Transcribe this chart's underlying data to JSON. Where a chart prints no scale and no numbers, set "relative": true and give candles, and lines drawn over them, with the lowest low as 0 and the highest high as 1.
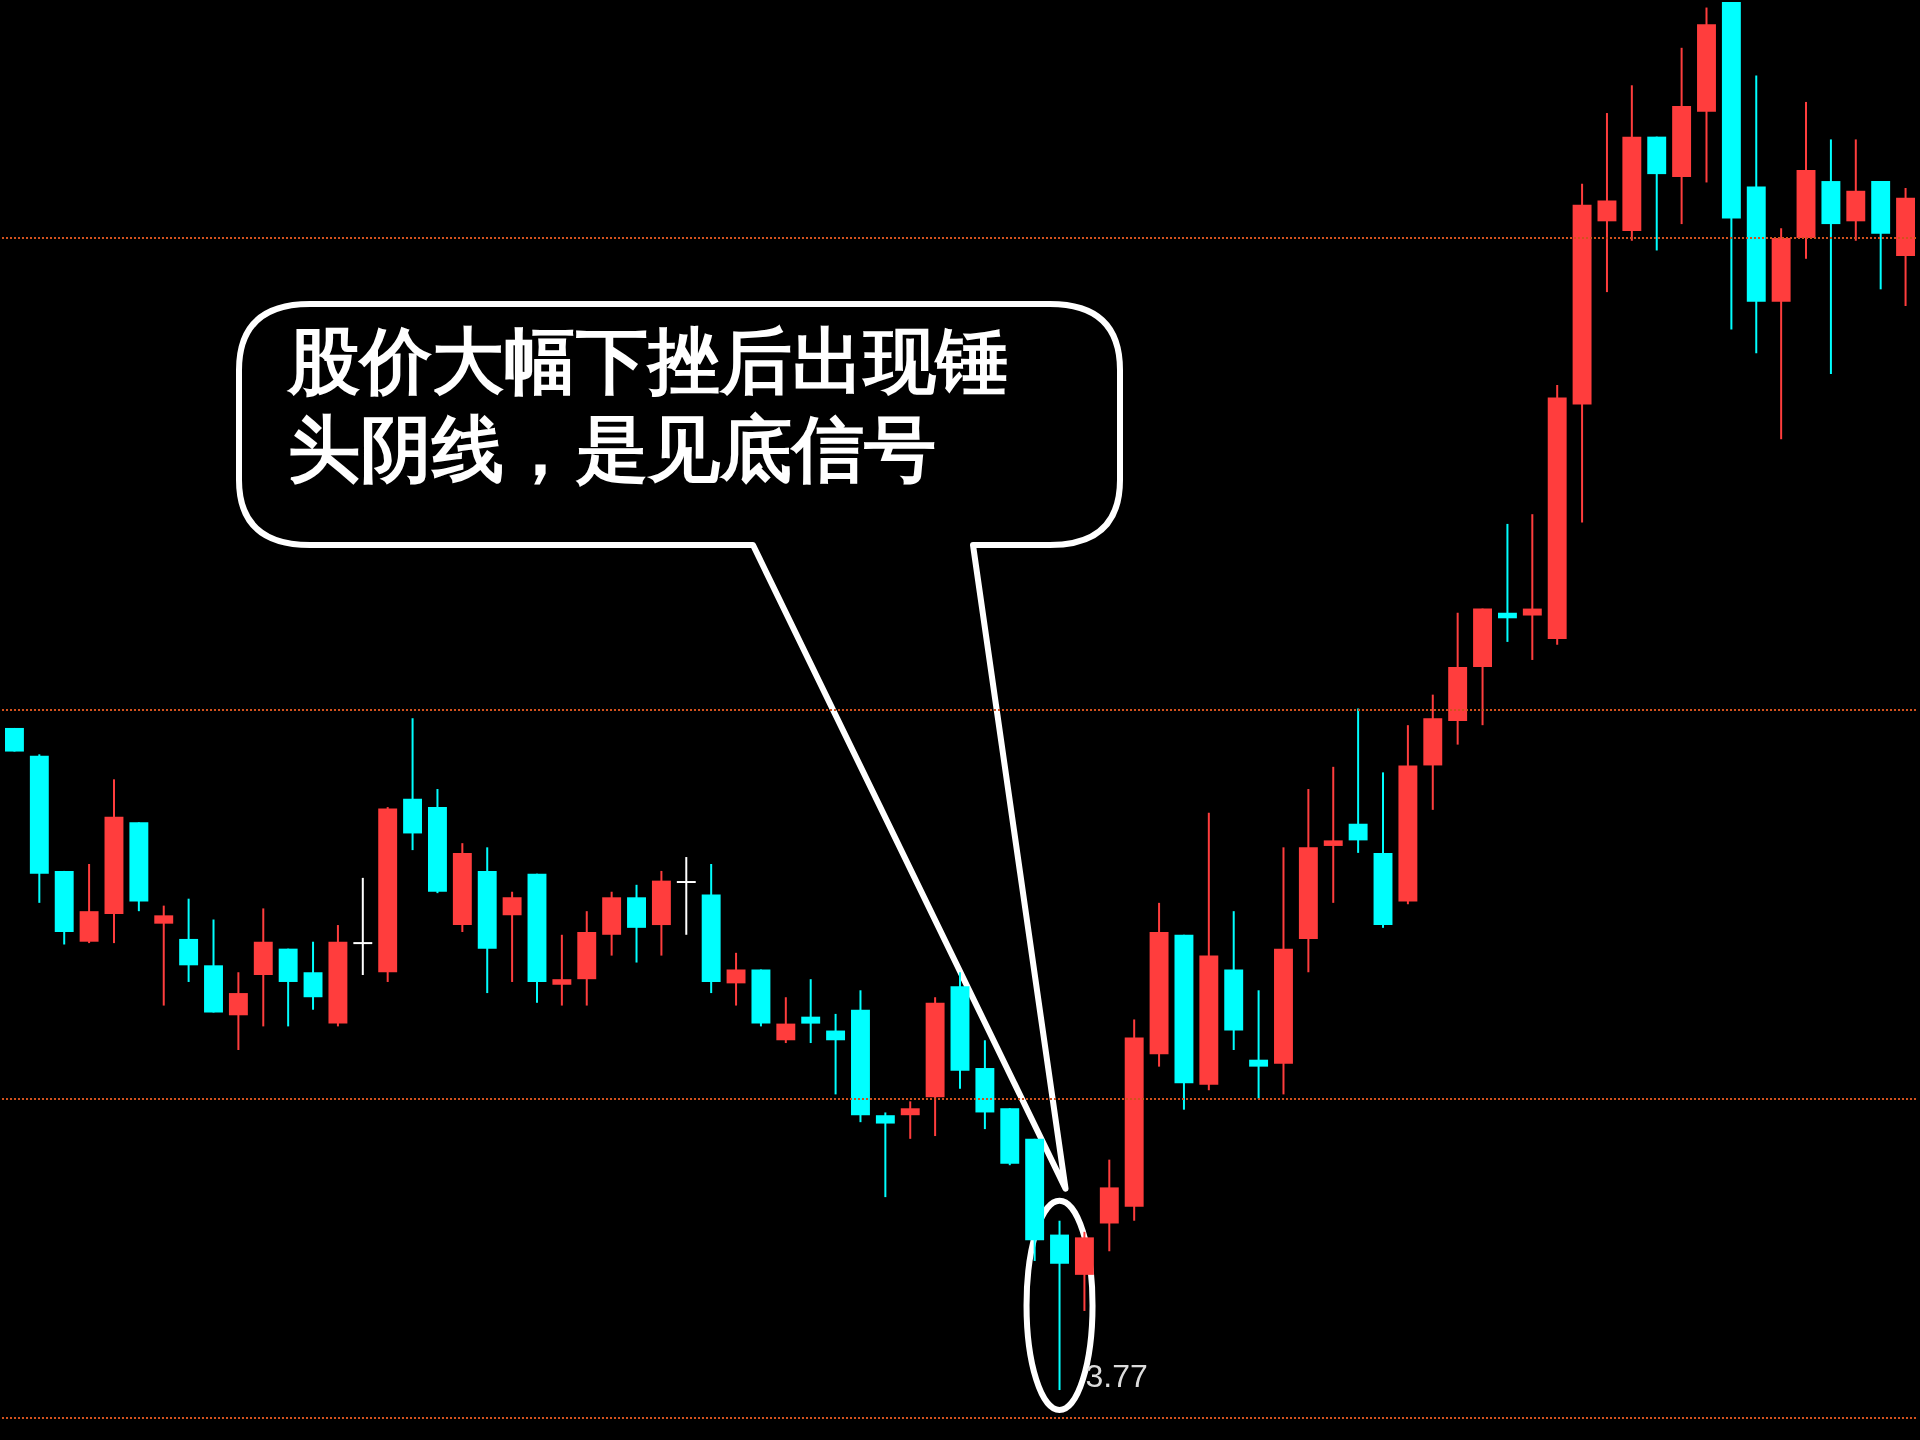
{
  "chart_data": {
    "type": "candlestick",
    "relative": true,
    "categories": [
      null,
      null,
      null,
      null,
      null,
      null,
      null,
      null,
      null,
      null,
      null,
      null,
      null,
      null,
      null,
      null,
      null,
      null,
      null,
      null,
      null,
      null,
      null,
      null,
      null,
      null,
      null,
      null,
      null,
      null,
      null,
      null,
      null,
      null,
      null,
      null,
      null,
      null,
      null,
      null,
      null,
      null,
      null,
      null,
      null,
      null,
      null,
      null,
      null,
      null,
      null,
      null,
      null,
      null,
      null,
      null,
      null,
      null,
      null,
      null,
      null,
      null,
      null,
      null,
      null,
      null,
      null,
      null,
      null,
      null,
      null,
      null,
      null,
      null,
      null,
      null,
      null
    ],
    "ohlc": [
      [
        0.477,
        0.477,
        0.46,
        0.46
      ],
      [
        0.457,
        0.458,
        0.351,
        0.372
      ],
      [
        0.374,
        0.374,
        0.321,
        0.33
      ],
      [
        0.323,
        0.379,
        0.322,
        0.345
      ],
      [
        0.343,
        0.44,
        0.322,
        0.413
      ],
      [
        0.409,
        0.409,
        0.345,
        0.352
      ],
      [
        0.336,
        0.349,
        0.277,
        0.342
      ],
      [
        0.325,
        0.354,
        0.294,
        0.306
      ],
      [
        0.306,
        0.339,
        0.272,
        0.272
      ],
      [
        0.27,
        0.301,
        0.245,
        0.286
      ],
      [
        0.299,
        0.347,
        0.262,
        0.323
      ],
      [
        0.318,
        0.318,
        0.262,
        0.294
      ],
      [
        0.301,
        0.323,
        0.274,
        0.283
      ],
      [
        0.264,
        0.335,
        0.262,
        0.323
      ],
      [
        0.322,
        0.369,
        0.299,
        0.322
      ],
      [
        0.301,
        0.42,
        0.294,
        0.419
      ],
      [
        0.426,
        0.484,
        0.389,
        0.401
      ],
      [
        0.42,
        0.433,
        0.358,
        0.359
      ],
      [
        0.335,
        0.394,
        0.33,
        0.387
      ],
      [
        0.374,
        0.391,
        0.286,
        0.318
      ],
      [
        0.342,
        0.359,
        0.294,
        0.355
      ],
      [
        0.372,
        0.372,
        0.279,
        0.294
      ],
      [
        0.292,
        0.328,
        0.277,
        0.296
      ],
      [
        0.296,
        0.345,
        0.277,
        0.33
      ],
      [
        0.328,
        0.359,
        0.313,
        0.355
      ],
      [
        0.355,
        0.364,
        0.308,
        0.333
      ],
      [
        0.335,
        0.374,
        0.313,
        0.367
      ],
      [
        0.366,
        0.384,
        0.328,
        0.366
      ],
      [
        0.357,
        0.379,
        0.286,
        0.294
      ],
      [
        0.293,
        0.315,
        0.277,
        0.303
      ],
      [
        0.303,
        0.303,
        0.262,
        0.264
      ],
      [
        0.252,
        0.283,
        0.25,
        0.264
      ],
      [
        0.269,
        0.296,
        0.25,
        0.264
      ],
      [
        0.259,
        0.271,
        0.213,
        0.252
      ],
      [
        0.274,
        0.288,
        0.193,
        0.198
      ],
      [
        0.198,
        0.2,
        0.139,
        0.192
      ],
      [
        0.198,
        0.208,
        0.181,
        0.203
      ],
      [
        0.211,
        0.283,
        0.183,
        0.279
      ],
      [
        0.291,
        0.301,
        0.217,
        0.23
      ],
      [
        0.232,
        0.252,
        0.188,
        0.2
      ],
      [
        0.203,
        0.203,
        0.162,
        0.163
      ],
      [
        0.181,
        0.181,
        0.093,
        0.108
      ],
      [
        0.112,
        0.122,
        0,
        0.091
      ],
      [
        0.083,
        0.114,
        0.057,
        0.11
      ],
      [
        0.12,
        0.166,
        0.1,
        0.146
      ],
      [
        0.132,
        0.267,
        0.122,
        0.254
      ],
      [
        0.242,
        0.351,
        0.233,
        0.33
      ],
      [
        0.328,
        0.328,
        0.202,
        0.221
      ],
      [
        0.22,
        0.416,
        0.216,
        0.313
      ],
      [
        0.303,
        0.345,
        0.245,
        0.259
      ],
      [
        0.238,
        0.288,
        0.21,
        0.233
      ],
      [
        0.235,
        0.391,
        0.213,
        0.318
      ],
      [
        0.325,
        0.433,
        0.301,
        0.391
      ],
      [
        0.392,
        0.449,
        0.351,
        0.396
      ],
      [
        0.408,
        0.491,
        0.387,
        0.396
      ],
      [
        0.387,
        0.445,
        0.333,
        0.335
      ],
      [
        0.352,
        0.479,
        0.35,
        0.45
      ],
      [
        0.45,
        0.501,
        0.418,
        0.484
      ],
      [
        0.482,
        0.56,
        0.465,
        0.521
      ],
      [
        0.521,
        0.563,
        0.479,
        0.563
      ],
      [
        0.56,
        0.624,
        0.539,
        0.556
      ],
      [
        0.558,
        0.631,
        0.526,
        0.563
      ],
      [
        0.541,
        0.724,
        0.537,
        0.715
      ],
      [
        0.71,
        0.869,
        0.625,
        0.854
      ],
      [
        0.842,
        0.92,
        0.791,
        0.857
      ],
      [
        0.835,
        0.94,
        0.828,
        0.903
      ],
      [
        0.903,
        0.903,
        0.821,
        0.876
      ],
      [
        0.874,
        0.967,
        0.84,
        0.925
      ],
      [
        0.921,
        0.996,
        0.87,
        0.984
      ],
      [
        1,
        1,
        0.764,
        0.844
      ],
      [
        0.867,
        0.947,
        0.747,
        0.784
      ],
      [
        0.784,
        0.837,
        0.685,
        0.83
      ],
      [
        0.83,
        0.928,
        0.815,
        0.879
      ],
      [
        0.871,
        0.901,
        0.732,
        0.84
      ],
      [
        0.842,
        0.901,
        0.828,
        0.864
      ],
      [
        0.871,
        0.871,
        0.793,
        0.833
      ],
      [
        0.817,
        0.866,
        0.781,
        0.859
      ]
    ],
    "colors": [
      "#00ffff",
      "#00ffff",
      "#00ffff",
      "#ff3d3d",
      "#ff3d3d",
      "#00ffff",
      "#ff3d3d",
      "#00ffff",
      "#00ffff",
      "#ff3d3d",
      "#ff3d3d",
      "#00ffff",
      "#00ffff",
      "#ff3d3d",
      "#ffffff",
      "#ff3d3d",
      "#00ffff",
      "#00ffff",
      "#ff3d3d",
      "#00ffff",
      "#ff3d3d",
      "#00ffff",
      "#ff3d3d",
      "#ff3d3d",
      "#ff3d3d",
      "#00ffff",
      "#ff3d3d",
      "#ffffff",
      "#00ffff",
      "#ff3d3d",
      "#00ffff",
      "#ff3d3d",
      "#00ffff",
      "#00ffff",
      "#00ffff",
      "#00ffff",
      "#ff3d3d",
      "#ff3d3d",
      "#00ffff",
      "#00ffff",
      "#00ffff",
      "#00ffff",
      "#00ffff",
      "#ff3d3d",
      "#ff3d3d",
      "#ff3d3d",
      "#ff3d3d",
      "#00ffff",
      "#ff3d3d",
      "#00ffff",
      "#00ffff",
      "#ff3d3d",
      "#ff3d3d",
      "#ff3d3d",
      "#00ffff",
      "#00ffff",
      "#ff3d3d",
      "#ff3d3d",
      "#ff3d3d",
      "#ff3d3d",
      "#00ffff",
      "#ff3d3d",
      "#ff3d3d",
      "#ff3d3d",
      "#ff3d3d",
      "#ff3d3d",
      "#00ffff",
      "#ff3d3d",
      "#ff3d3d",
      "#00ffff",
      "#00ffff",
      "#ff3d3d",
      "#ff3d3d",
      "#00ffff",
      "#ff3d3d",
      "#00ffff",
      "#ff3d3d"
    ],
    "ref_lines": [
      {
        "axis": "y",
        "value": 0.83,
        "color": "#d2521e",
        "line_style": "dotted"
      },
      {
        "axis": "y",
        "value": 0.486,
        "color": "#d2521e",
        "line_style": "dotted"
      },
      {
        "axis": "y",
        "value": 0.207,
        "color": "#d2521e",
        "line_style": "dotted"
      },
      {
        "axis": "y",
        "value": -0.018,
        "color": "#d2521e",
        "line_style": "dotted"
      }
    ],
    "annotations": [
      "股价大幅下挫后出现锤头阴线，是见底信号",
      "3.77"
    ]
  }
}
